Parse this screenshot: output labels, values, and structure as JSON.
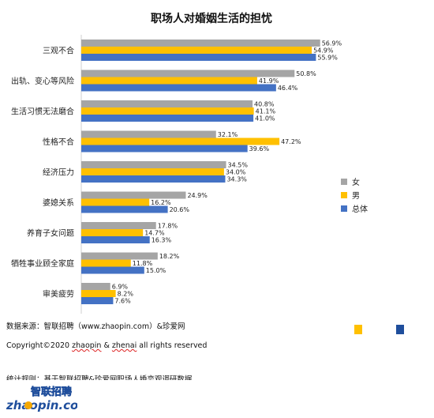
{
  "chart_data": {
    "type": "bar",
    "orientation": "horizontal",
    "title": "职场人对婚姻生活的担忧",
    "categories": [
      "三观不合",
      "出轨、变心等风险",
      "生活习惯无法磨合",
      "性格不合",
      "经济压力",
      "婆媳关系",
      "养育子女问题",
      "牺牲事业顾全家庭",
      "审美疲劳"
    ],
    "series": [
      {
        "name": "女",
        "color": "#a5a5a5",
        "values": [
          56.9,
          50.8,
          40.8,
          32.1,
          34.5,
          24.9,
          17.8,
          18.2,
          6.9
        ]
      },
      {
        "name": "男",
        "color": "#ffc000",
        "values": [
          54.9,
          41.9,
          41.1,
          47.2,
          34.0,
          16.2,
          14.7,
          11.8,
          8.2
        ]
      },
      {
        "name": "总体",
        "color": "#4472c4",
        "values": [
          55.9,
          46.4,
          41.0,
          39.6,
          34.3,
          20.6,
          16.3,
          15.0,
          7.6
        ]
      }
    ],
    "value_format": "%",
    "grid": false,
    "legend_position": "right"
  },
  "footer": {
    "source": "数据来源：智联招聘（www.zhaopin.com）&珍爱网",
    "copyright_prefix": "Copyright©2020 ",
    "copyright_brand1": "zhaopin",
    "copyright_amp": " & ",
    "copyright_brand2": "zhenai",
    "copyright_suffix": "  all rights reserved",
    "method": "统计规则：基于智联招聘&珍爱网职场人婚恋观调研数据"
  },
  "logo": {
    "line1": "智联招聘",
    "line2": "zhaopin.com"
  },
  "colors": {
    "squares": [
      "#ffc000",
      "#1f4e9c"
    ]
  }
}
